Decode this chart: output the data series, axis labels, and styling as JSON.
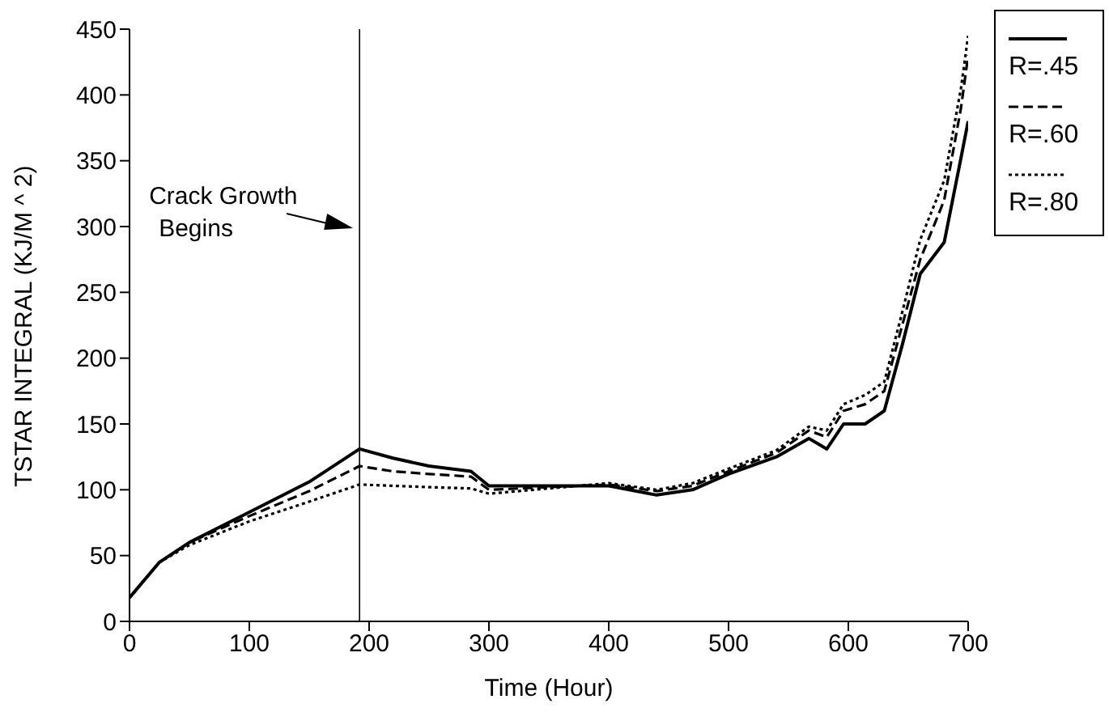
{
  "chart_data": {
    "type": "line",
    "xlabel": "Time (Hour)",
    "ylabel": "TSTAR INTEGRAL (KJ/M ^ 2)",
    "x": [
      0,
      25,
      50,
      100,
      150,
      192,
      220,
      250,
      285,
      300,
      350,
      400,
      440,
      470,
      500,
      540,
      567,
      582,
      596,
      614,
      630,
      645,
      660,
      680,
      694,
      700
    ],
    "series": [
      {
        "name": "R=.45",
        "color": "#000000",
        "line_style": "solid",
        "values": [
          18,
          45,
          60,
          83,
          106,
          131,
          124,
          118,
          114,
          103,
          103,
          103,
          96,
          100,
          112,
          125,
          139,
          131,
          150,
          150,
          160,
          210,
          264,
          288,
          352,
          380
        ]
      },
      {
        "name": "R=.60",
        "color": "#000000",
        "line_style": "dashed",
        "values": [
          18,
          45,
          60,
          80,
          99,
          118,
          114,
          112,
          110,
          100,
          102,
          104,
          99,
          103,
          114,
          128,
          145,
          140,
          160,
          165,
          175,
          225,
          275,
          320,
          390,
          430
        ]
      },
      {
        "name": "R=.80",
        "color": "#000000",
        "line_style": "dotted",
        "values": [
          18,
          45,
          58,
          76,
          91,
          104,
          103,
          102,
          101,
          97,
          101,
          105,
          100,
          105,
          116,
          130,
          148,
          145,
          165,
          172,
          182,
          235,
          290,
          335,
          405,
          445
        ]
      }
    ],
    "xlim": [
      0,
      700
    ],
    "xticks": [
      0,
      100,
      200,
      300,
      400,
      500,
      600,
      700
    ],
    "ylim": [
      0,
      450
    ],
    "yticks": [
      0,
      50,
      100,
      150,
      200,
      250,
      300,
      350,
      400,
      450
    ],
    "grid": false,
    "legend": "right",
    "marker": "none",
    "ref_lines": [
      {
        "axis": "x",
        "value": 192,
        "label": "Crack Growth Begins"
      }
    ]
  }
}
